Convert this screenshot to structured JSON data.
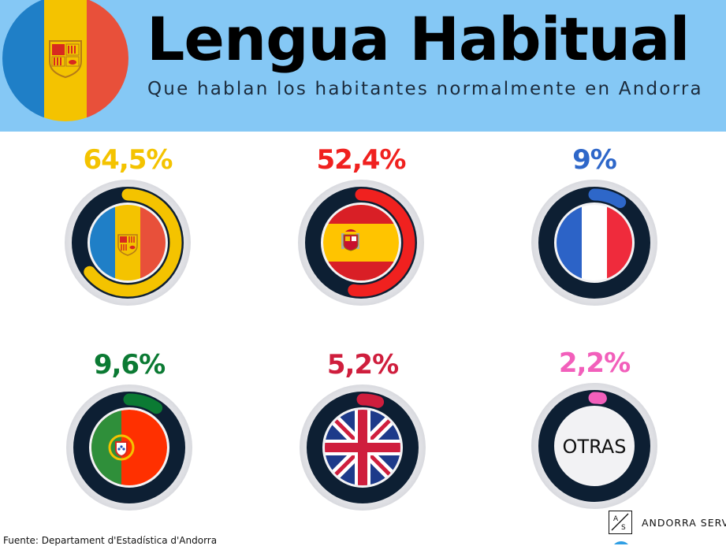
{
  "header": {
    "title": "Lengua Habitual",
    "subtitle": "Que hablan los habitantes normalmente en Andorra"
  },
  "chart_data": {
    "type": "donut",
    "title": "Lengua Habitual",
    "subtitle": "Que hablan los habitantes normalmente en Andorra",
    "unit": "%",
    "items": [
      {
        "label": "64,5%",
        "value": 64.5,
        "flag_icon": "andorra-flag-icon",
        "color": "#f4c300"
      },
      {
        "label": "52,4%",
        "value": 52.4,
        "flag_icon": "spain-flag-icon",
        "color": "#f0211f"
      },
      {
        "label": "9%",
        "value": 9,
        "flag_icon": "france-flag-icon",
        "color": "#2e67c9"
      },
      {
        "label": "9,6%",
        "value": 9.6,
        "flag_icon": "portugal-flag-icon",
        "color": "#0b7a33"
      },
      {
        "label": "5,2%",
        "value": 5.2,
        "flag_icon": "uk-flag-icon",
        "color": "#cf1e3d"
      },
      {
        "label": "2,2%",
        "value": 2.2,
        "center_text": "OTRAS",
        "color": "#f25fbb"
      }
    ]
  },
  "footer": {
    "source": "Fuente: Departament d'Estadística d'Andorra",
    "brand_mark": "A/S",
    "brand_name": "ANDORRA SERVICES"
  },
  "colors": {
    "header_bg": "#85c8f5",
    "ring_dark": "#0d1f33",
    "disc": "#efeff1"
  }
}
